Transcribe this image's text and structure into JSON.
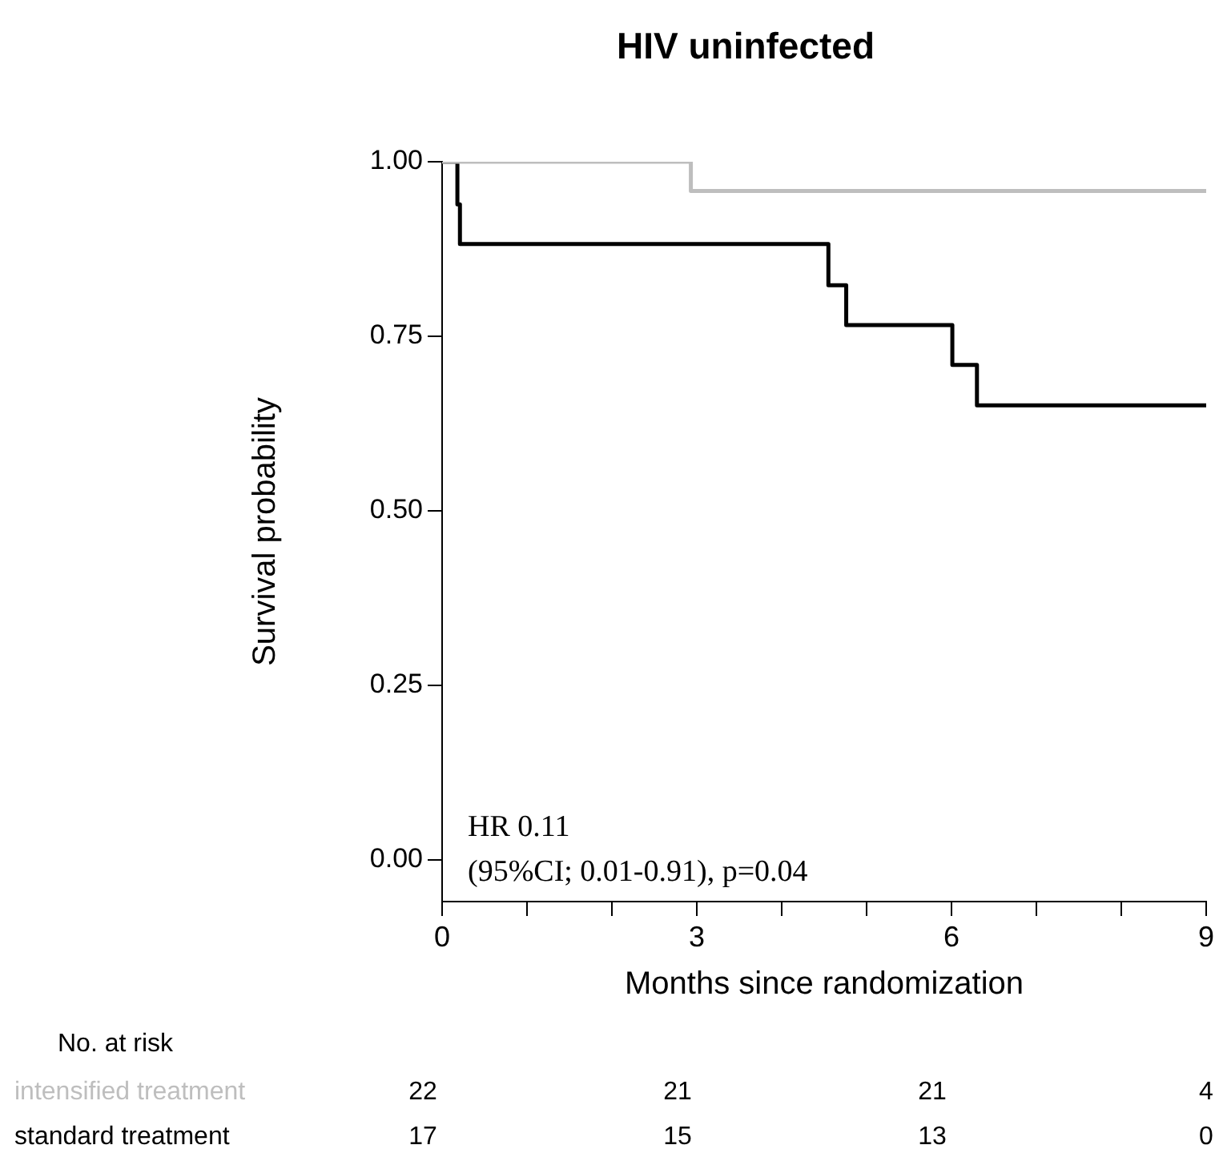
{
  "chart_data": {
    "type": "step",
    "title": "HIV uninfected",
    "xlabel": "Months since randomization",
    "ylabel": "Survival probability",
    "series": [
      {
        "name": "intensified treatment",
        "color": "#bebebe",
        "x": [
          0,
          2.93,
          9
        ],
        "values": [
          1,
          0.958,
          0.958
        ]
      },
      {
        "name": "standard treatment",
        "color": "#000000",
        "x": [
          0,
          0.18,
          0.21,
          4.55,
          4.76,
          6.01,
          6.3,
          9
        ],
        "values": [
          1,
          0.939,
          0.882,
          0.823,
          0.766,
          0.709,
          0.651,
          0.651
        ]
      }
    ],
    "xlim": [
      0,
      9
    ],
    "xticks": [
      0,
      {
        "value": 1,
        "label": null
      },
      {
        "value": 2,
        "label": null
      },
      3,
      {
        "value": 4,
        "label": null
      },
      {
        "value": 5,
        "label": null
      },
      6,
      {
        "value": 7,
        "label": null
      },
      {
        "value": 8,
        "label": null
      },
      9
    ],
    "ylim": [
      -0.06,
      1
    ],
    "yticks": [
      {
        "value": 0,
        "label": "0.00"
      },
      {
        "value": 0.25,
        "label": "0.25"
      },
      {
        "value": 0.5,
        "label": "0.50"
      },
      {
        "value": 0.75,
        "label": "0.75"
      },
      {
        "value": 1,
        "label": "1.00"
      }
    ],
    "grid": false,
    "legend": false,
    "marker": "none",
    "line_style": "solid",
    "annotations": [
      "HR 0.11",
      "(95%CI; 0.01-0.91), p=0.04",
      "No. at risk",
      "22",
      "21",
      "21",
      "4",
      "17",
      "15",
      "13",
      "0"
    ]
  }
}
